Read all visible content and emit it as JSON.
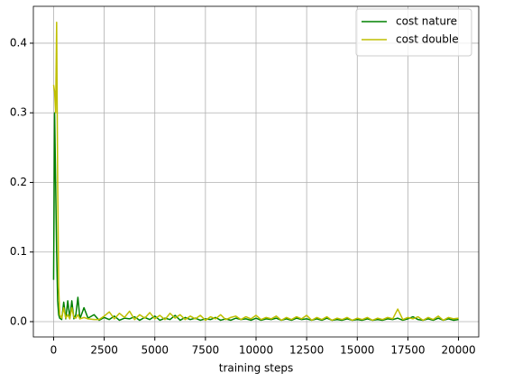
{
  "chart_data": {
    "type": "line",
    "xlabel": "training steps",
    "x": [
      0,
      50,
      100,
      150,
      200,
      250,
      300,
      400,
      500,
      600,
      700,
      800,
      900,
      1000,
      1100,
      1200,
      1300,
      1500,
      1700,
      2000,
      2250,
      2500,
      2750,
      3000,
      3250,
      3500,
      3750,
      4000,
      4250,
      4500,
      4750,
      5000,
      5250,
      5500,
      5750,
      6000,
      6250,
      6500,
      6750,
      7000,
      7250,
      7500,
      7750,
      8000,
      8250,
      8500,
      8750,
      9000,
      9250,
      9500,
      9750,
      10000,
      10250,
      10500,
      10750,
      11000,
      11250,
      11500,
      11750,
      12000,
      12250,
      12500,
      12750,
      13000,
      13250,
      13500,
      13750,
      14000,
      14250,
      14500,
      14750,
      15000,
      15250,
      15500,
      15750,
      16000,
      16250,
      16500,
      16750,
      17000,
      17250,
      17500,
      17750,
      18000,
      18250,
      18500,
      18750,
      19000,
      19250,
      19500,
      19750,
      20000
    ],
    "series": [
      {
        "name": "cost nature",
        "color": "#008000",
        "values": [
          0.06,
          0.3,
          0.2,
          0.1,
          0.03,
          0.01,
          0.005,
          0.003,
          0.028,
          0.004,
          0.03,
          0.005,
          0.03,
          0.004,
          0.01,
          0.035,
          0.004,
          0.02,
          0.005,
          0.01,
          0.002,
          0.006,
          0.003,
          0.008,
          0.002,
          0.005,
          0.004,
          0.007,
          0.002,
          0.006,
          0.003,
          0.008,
          0.002,
          0.005,
          0.003,
          0.009,
          0.002,
          0.006,
          0.003,
          0.005,
          0.002,
          0.004,
          0.003,
          0.006,
          0.002,
          0.004,
          0.002,
          0.005,
          0.003,
          0.004,
          0.002,
          0.005,
          0.002,
          0.004,
          0.003,
          0.005,
          0.002,
          0.004,
          0.002,
          0.005,
          0.003,
          0.004,
          0.002,
          0.004,
          0.002,
          0.005,
          0.002,
          0.003,
          0.002,
          0.004,
          0.002,
          0.003,
          0.002,
          0.004,
          0.002,
          0.003,
          0.002,
          0.004,
          0.003,
          0.005,
          0.002,
          0.004,
          0.007,
          0.003,
          0.002,
          0.004,
          0.002,
          0.005,
          0.002,
          0.004,
          0.002,
          0.003
        ]
      },
      {
        "name": "cost double",
        "color": "#bfbf00",
        "values": [
          0.34,
          0.33,
          0.3,
          0.43,
          0.2,
          0.05,
          0.01,
          0.005,
          0.02,
          0.005,
          0.01,
          0.004,
          0.02,
          0.006,
          0.005,
          0.01,
          0.004,
          0.006,
          0.004,
          0.003,
          0.003,
          0.008,
          0.014,
          0.004,
          0.012,
          0.006,
          0.015,
          0.003,
          0.01,
          0.005,
          0.013,
          0.004,
          0.009,
          0.003,
          0.012,
          0.005,
          0.01,
          0.003,
          0.008,
          0.004,
          0.009,
          0.002,
          0.007,
          0.004,
          0.01,
          0.003,
          0.006,
          0.008,
          0.003,
          0.007,
          0.004,
          0.009,
          0.003,
          0.006,
          0.004,
          0.008,
          0.002,
          0.006,
          0.003,
          0.007,
          0.004,
          0.009,
          0.002,
          0.006,
          0.003,
          0.007,
          0.002,
          0.005,
          0.003,
          0.006,
          0.002,
          0.005,
          0.003,
          0.006,
          0.002,
          0.005,
          0.003,
          0.006,
          0.004,
          0.018,
          0.003,
          0.006,
          0.004,
          0.007,
          0.002,
          0.006,
          0.003,
          0.008,
          0.002,
          0.006,
          0.004,
          0.005
        ]
      }
    ],
    "xlim": [
      -1000,
      21000
    ],
    "ylim": [
      -0.022,
      0.453
    ],
    "xticks": [
      0,
      2500,
      5000,
      7500,
      10000,
      12500,
      15000,
      17500,
      20000
    ],
    "yticks": [
      {
        "value": 0,
        "label": "0.0"
      },
      0.1,
      0.2,
      0.3,
      0.4
    ],
    "grid": true,
    "legend": "upper right"
  }
}
